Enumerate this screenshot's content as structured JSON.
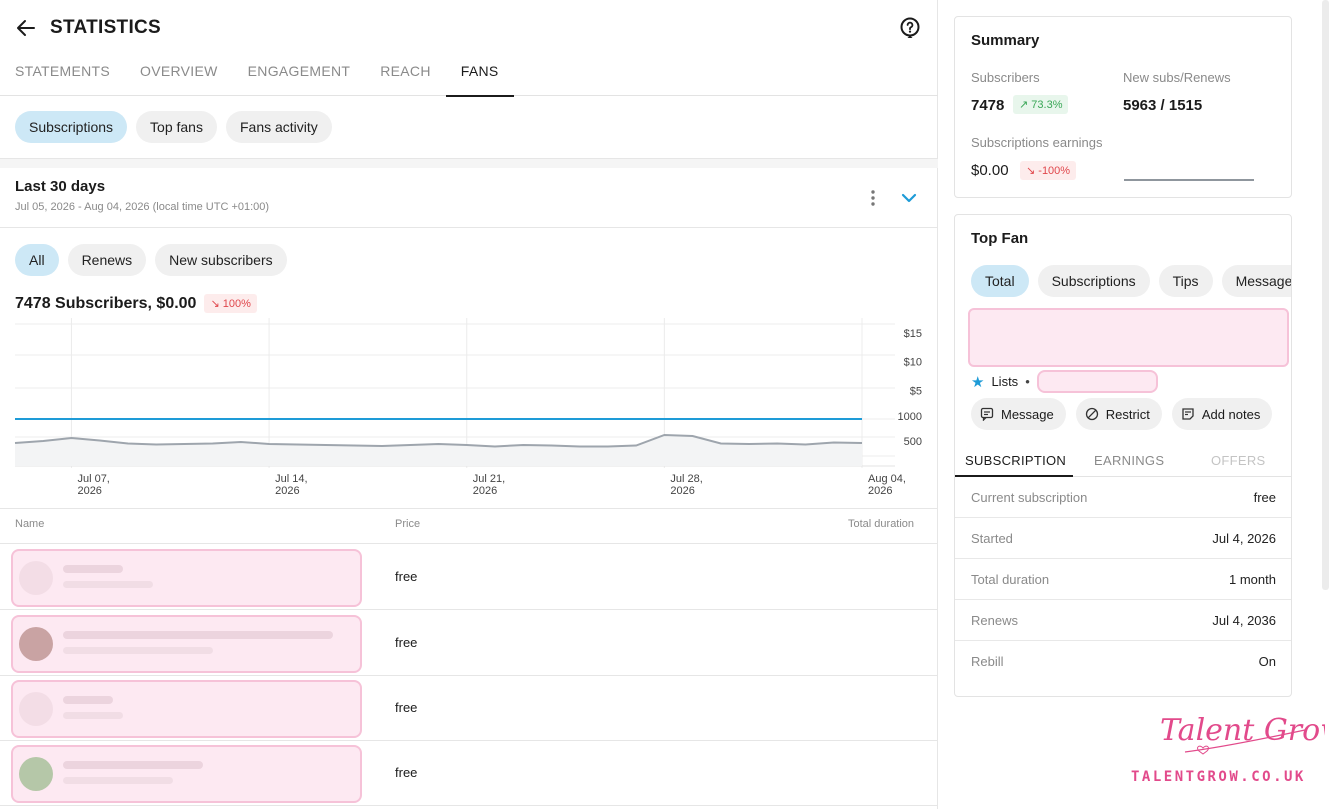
{
  "header": {
    "title": "STATISTICS"
  },
  "tabs": [
    {
      "label": "STATEMENTS"
    },
    {
      "label": "OVERVIEW"
    },
    {
      "label": "ENGAGEMENT"
    },
    {
      "label": "REACH"
    },
    {
      "label": "FANS",
      "active": true
    }
  ],
  "section_pills": [
    {
      "label": "Subscriptions",
      "selected": true
    },
    {
      "label": "Top fans"
    },
    {
      "label": "Fans activity"
    }
  ],
  "period": {
    "title": "Last 30 days",
    "range": "Jul 05, 2026 - Aug 04, 2026 (local time UTC +01:00)"
  },
  "filter_pills": [
    {
      "label": "All",
      "selected": true
    },
    {
      "label": "Renews"
    },
    {
      "label": "New subscribers"
    }
  ],
  "totals": {
    "text": "7478 Subscribers, $0.00",
    "change": "100%"
  },
  "chart_data": {
    "type": "line",
    "x_ticks": [
      {
        "line1": "Jul 07,",
        "line2": "2026"
      },
      {
        "line1": "Jul 14,",
        "line2": "2026"
      },
      {
        "line1": "Jul 21,",
        "line2": "2026"
      },
      {
        "line1": "Jul 28,",
        "line2": "2026"
      },
      {
        "line1": "Aug 04,",
        "line2": "2026"
      }
    ],
    "earnings_axis": {
      "ticks": [
        "$15",
        "$10",
        "$5"
      ],
      "ylim": [
        0,
        15
      ]
    },
    "subscribers_axis": {
      "ticks": [
        "1000",
        "500"
      ],
      "ylim": [
        0,
        1400
      ]
    },
    "series": [
      {
        "color": "#1e9bd7",
        "values": [
          0,
          0,
          0,
          0,
          0,
          0,
          0,
          0,
          0,
          0,
          0,
          0,
          0,
          0,
          0,
          0,
          0,
          0,
          0,
          0,
          0,
          0,
          0,
          0,
          0,
          0,
          0,
          0,
          0,
          0,
          0
        ]
      },
      {
        "color": "#9ea5ad",
        "values": [
          460,
          500,
          560,
          510,
          450,
          430,
          440,
          450,
          480,
          440,
          430,
          420,
          410,
          400,
          420,
          440,
          420,
          390,
          420,
          410,
          390,
          390,
          410,
          620,
          600,
          450,
          440,
          450,
          430,
          470,
          460
        ]
      }
    ]
  },
  "table": {
    "columns": [
      "Name",
      "Price",
      "Total duration"
    ],
    "rows": [
      {
        "price": "free"
      },
      {
        "price": "free"
      },
      {
        "price": "free"
      },
      {
        "price": "free"
      }
    ]
  },
  "summary": {
    "title": "Summary",
    "subscribers_label": "Subscribers",
    "subscribers_value": "7478",
    "subscribers_change": "73.3%",
    "newsubs_label": "New subs/Renews",
    "newsubs_value": "5963 / 1515",
    "earnings_label": "Subscriptions earnings",
    "earnings_value": "$0.00",
    "earnings_change": "-100%"
  },
  "top_fan": {
    "title": "Top Fan",
    "pills": [
      {
        "label": "Total",
        "selected": true
      },
      {
        "label": "Subscriptions"
      },
      {
        "label": "Tips"
      },
      {
        "label": "Message"
      }
    ],
    "lists_label": "Lists",
    "actions": [
      {
        "label": "Message",
        "icon": "message-icon"
      },
      {
        "label": "Restrict",
        "icon": "restrict-icon"
      },
      {
        "label": "Add notes",
        "icon": "notes-icon"
      }
    ],
    "subtabs": [
      "SUBSCRIPTION",
      "EARNINGS",
      "OFFERS"
    ],
    "info": [
      {
        "key": "Current subscription",
        "value": "free"
      },
      {
        "key": "Started",
        "value": "Jul 4, 2026"
      },
      {
        "key": "Total duration",
        "value": "1 month"
      },
      {
        "key": "Renews",
        "value": "Jul 4, 2036"
      },
      {
        "key": "Rebill",
        "value": "On"
      }
    ]
  },
  "watermark": {
    "script": "Talent Grow",
    "url": "TALENTGROW.CO.UK"
  },
  "colors": {
    "accent": "#1e9bd7",
    "selected_pill": "#cde8f6",
    "down": "#e0474c",
    "up": "#3aa757",
    "brand_pink": "#e24a8b"
  }
}
